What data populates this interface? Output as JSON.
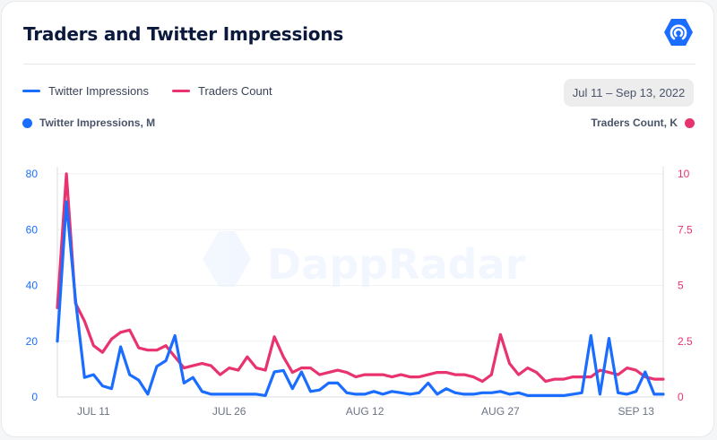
{
  "header": {
    "title": "Traders and Twitter Impressions",
    "logo_icon": "dappradar-logo-icon"
  },
  "legend": [
    {
      "label": "Twitter Impressions",
      "color": "#1a6dff"
    },
    {
      "label": "Traders Count",
      "color": "#e8336e"
    }
  ],
  "date_range": "Jul 11 – Sep 13, 2022",
  "axis_titles": {
    "left": "Twitter Impressions, M",
    "right": "Traders Count, K"
  },
  "watermark": "DappRadar",
  "chart_data": {
    "type": "line",
    "title": "Traders and Twitter Impressions",
    "x_tick_labels": [
      {
        "index": 4,
        "label": "JUL 11"
      },
      {
        "index": 19,
        "label": "JUL 26"
      },
      {
        "index": 34,
        "label": "AUG 12"
      },
      {
        "index": 49,
        "label": "AUG 27"
      },
      {
        "index": 64,
        "label": "SEP 13"
      }
    ],
    "y_left": {
      "label": "Twitter Impressions, M",
      "ticks": [
        "0",
        "20",
        "40",
        "60",
        "80"
      ],
      "range": [
        0,
        80
      ]
    },
    "y_right": {
      "label": "Traders Count, K",
      "ticks": [
        "0",
        "2.5",
        "5",
        "7.5",
        "10"
      ],
      "range": [
        0,
        10
      ]
    },
    "grid": true,
    "series": [
      {
        "name": "Twitter Impressions",
        "axis": "left",
        "color": "#1a6dff",
        "values": [
          20,
          70,
          35,
          7,
          8,
          4,
          3,
          18,
          8,
          6,
          1,
          11,
          13,
          22,
          5,
          7,
          2,
          1,
          1,
          1,
          1,
          1,
          1,
          0.5,
          9,
          9.5,
          3,
          9,
          2,
          2.5,
          5,
          5,
          1.5,
          1,
          1,
          2,
          1,
          2,
          1.5,
          1,
          1.5,
          5,
          1,
          3,
          1.5,
          1,
          1,
          1.5,
          1.5,
          2,
          1,
          1.5,
          0.5,
          0.5,
          0.5,
          0.5,
          0.5,
          1,
          1.5,
          22,
          1,
          21,
          1.5,
          1,
          2,
          9,
          1,
          1
        ]
      },
      {
        "name": "Traders Count",
        "axis": "right",
        "color": "#e8336e",
        "values": [
          4,
          10,
          4.2,
          3.4,
          2.3,
          2,
          2.6,
          2.9,
          3,
          2.2,
          2.1,
          2.1,
          2.3,
          1.8,
          1.3,
          1.4,
          1.5,
          1.4,
          1,
          1.3,
          1.2,
          1.8,
          1.3,
          1.2,
          2.7,
          1.8,
          1.1,
          1.3,
          1.3,
          1,
          1.1,
          1.2,
          1.1,
          0.9,
          1,
          1,
          1,
          0.9,
          1,
          0.9,
          0.9,
          1,
          1.1,
          1.1,
          1,
          1,
          0.9,
          0.7,
          1,
          2.8,
          1.5,
          1,
          1.3,
          1.1,
          0.7,
          0.8,
          0.8,
          0.9,
          0.9,
          0.9,
          1.2,
          1.1,
          1,
          1.3,
          1.2,
          0.9,
          0.8,
          0.8
        ]
      }
    ]
  }
}
